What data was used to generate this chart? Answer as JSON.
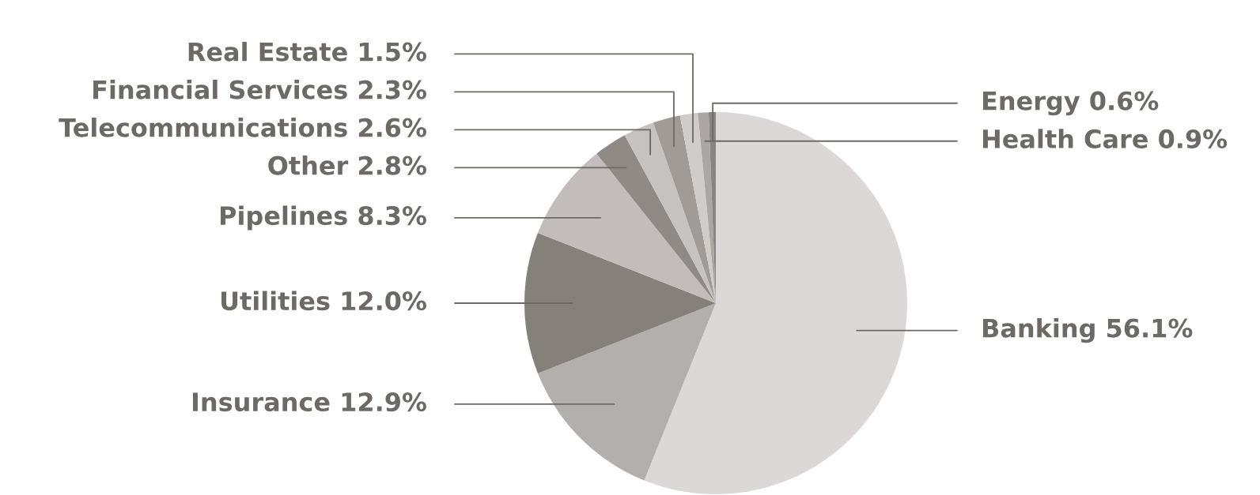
{
  "chart_data": {
    "type": "pie",
    "categories": [
      "Banking",
      "Insurance",
      "Utilities",
      "Pipelines",
      "Other",
      "Telecommunications",
      "Financial Services",
      "Real Estate",
      "Health Care",
      "Energy"
    ],
    "values": [
      56.1,
      12.9,
      12.0,
      8.3,
      2.8,
      2.6,
      2.3,
      1.5,
      0.9,
      0.6
    ],
    "value_labels": [
      "56.1%",
      "12.9%",
      "12.0%",
      "8.3%",
      "2.8%",
      "2.6%",
      "2.3%",
      "1.5%",
      "0.9%",
      "0.6%"
    ],
    "colors": [
      "#dcd8d7",
      "#b3afac",
      "#858079",
      "#c2bdba",
      "#8f8a85",
      "#c6c2bf",
      "#a09b97",
      "#d0ccc9",
      "#aca7a4",
      "#8a8580"
    ]
  }
}
